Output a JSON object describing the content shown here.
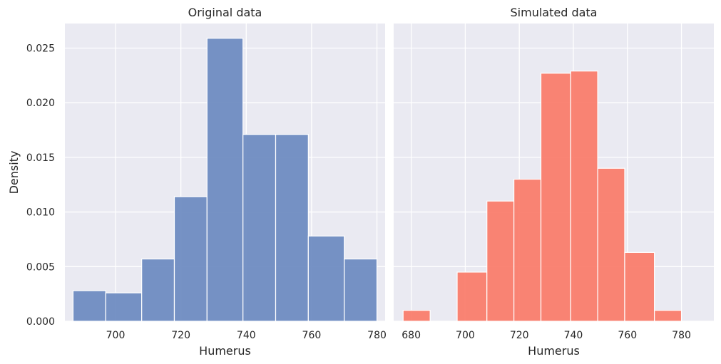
{
  "chart_data": [
    {
      "type": "bar",
      "title": "Original data",
      "xlabel": "Humerus",
      "ylabel": "Density",
      "xlim": [
        684.5,
        782.5
      ],
      "ylim": [
        0,
        0.02725
      ],
      "xticks": [
        700,
        720,
        740,
        760,
        780
      ],
      "xtick_labels": [
        "700",
        "720",
        "740",
        "760",
        "780"
      ],
      "yticks": [
        0,
        0.005,
        0.01,
        0.015,
        0.02,
        0.025
      ],
      "ytick_labels": [
        "0.000",
        "0.005",
        "0.010",
        "0.015",
        "0.020",
        "0.025"
      ],
      "grid": true,
      "color": "#6a89c0",
      "bins": [
        {
          "x0": 687,
          "x1": 697,
          "value": 0.0028
        },
        {
          "x0": 697,
          "x1": 708,
          "value": 0.0026
        },
        {
          "x0": 708,
          "x1": 718,
          "value": 0.0057
        },
        {
          "x0": 718,
          "x1": 728,
          "value": 0.0114
        },
        {
          "x0": 728,
          "x1": 739,
          "value": 0.0259
        },
        {
          "x0": 739,
          "x1": 749,
          "value": 0.0171
        },
        {
          "x0": 749,
          "x1": 759,
          "value": 0.0171
        },
        {
          "x0": 759,
          "x1": 770,
          "value": 0.0078
        },
        {
          "x0": 770,
          "x1": 780,
          "value": 0.0057
        }
      ]
    },
    {
      "type": "bar",
      "title": "Simulated data",
      "xlabel": "Humerus",
      "ylabel": "",
      "xlim": [
        673.5,
        792
      ],
      "ylim": [
        0,
        0.02725
      ],
      "xticks": [
        680,
        700,
        720,
        740,
        760,
        780
      ],
      "xtick_labels": [
        "680",
        "700",
        "720",
        "740",
        "760",
        "780"
      ],
      "yticks": [
        0,
        0.005,
        0.01,
        0.015,
        0.02,
        0.025
      ],
      "ytick_labels": [],
      "grid": true,
      "color": "#fa7a68",
      "bins": [
        {
          "x0": 677,
          "x1": 687,
          "value": 0.001
        },
        {
          "x0": 697,
          "x1": 708,
          "value": 0.0045
        },
        {
          "x0": 708,
          "x1": 718,
          "value": 0.011
        },
        {
          "x0": 718,
          "x1": 728,
          "value": 0.013
        },
        {
          "x0": 728,
          "x1": 739,
          "value": 0.0227
        },
        {
          "x0": 739,
          "x1": 749,
          "value": 0.0229
        },
        {
          "x0": 749,
          "x1": 759,
          "value": 0.014
        },
        {
          "x0": 759,
          "x1": 770,
          "value": 0.0063
        },
        {
          "x0": 770,
          "x1": 780,
          "value": 0.001
        }
      ]
    }
  ],
  "style": {
    "panel_background": "#eaeaf2",
    "grid_color": "#ffffff",
    "text_color": "#262626"
  }
}
